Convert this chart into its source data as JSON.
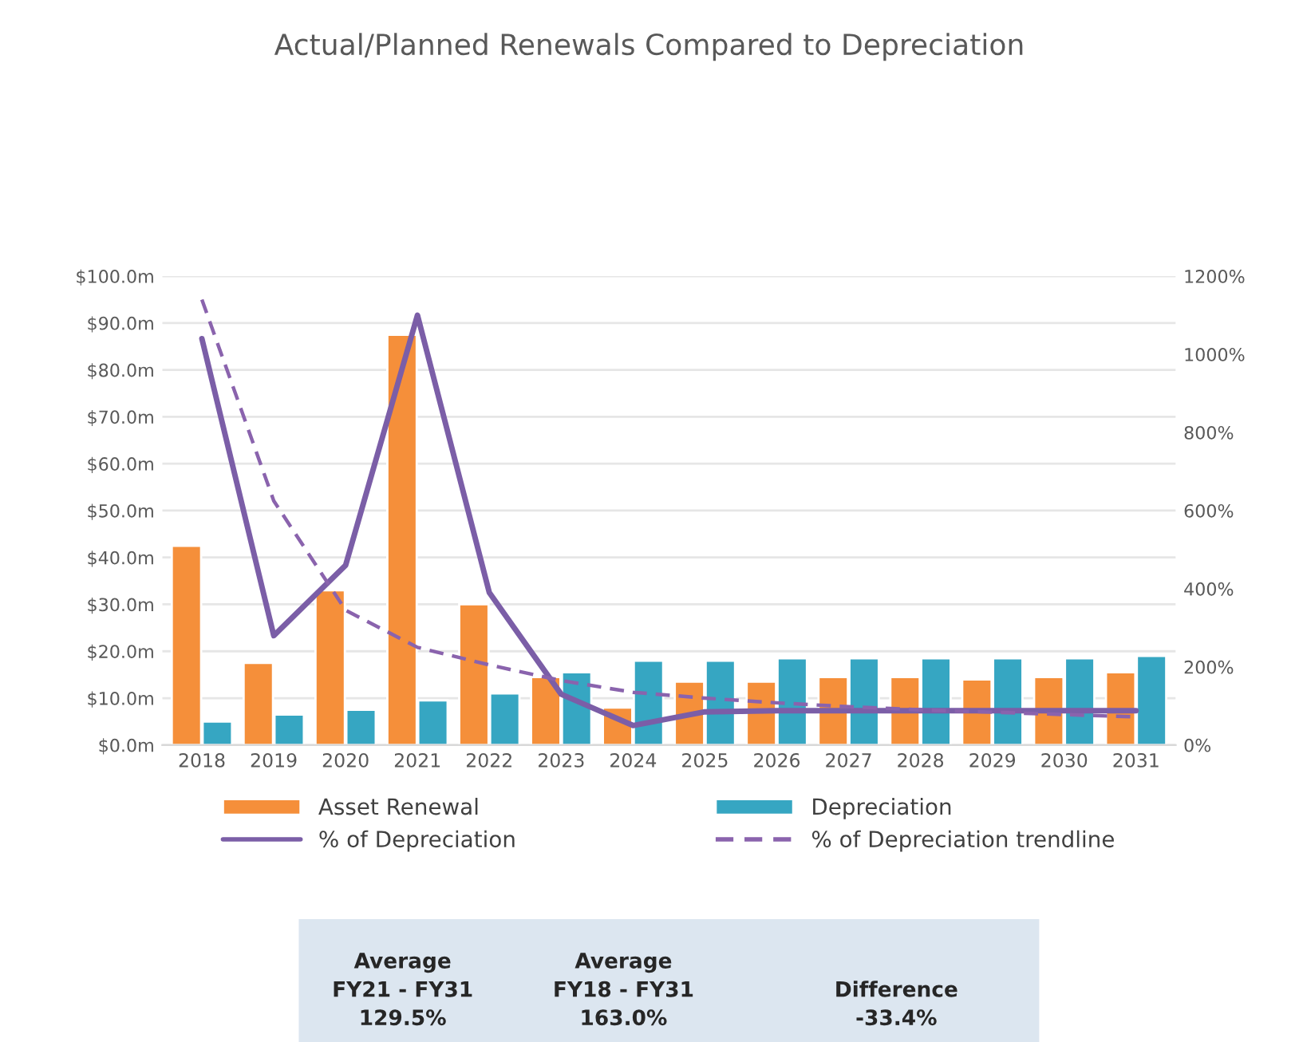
{
  "chart_data": {
    "type": "bar",
    "title": "Actual/Planned Renewals Compared to Depreciation",
    "categories": [
      "2018",
      "2019",
      "2020",
      "2021",
      "2022",
      "2023",
      "2024",
      "2025",
      "2026",
      "2027",
      "2028",
      "2029",
      "2030",
      "2031"
    ],
    "series": [
      {
        "name": "Asset Renewal",
        "color": "#f58f3a",
        "values": [
          42.5,
          17.5,
          33,
          87.5,
          30,
          14.5,
          8,
          13.5,
          13.5,
          14.5,
          14.5,
          14,
          14.5,
          15.5
        ]
      },
      {
        "name": "Depreciation",
        "color": "#36a6c2",
        "values": [
          5,
          6.5,
          7.5,
          9.5,
          11,
          15.5,
          18,
          18,
          18.5,
          18.5,
          18.5,
          18.5,
          18.5,
          19
        ]
      },
      {
        "name": "% of Depreciation",
        "type": "line",
        "axis": "y2",
        "color": "#7b5ea7",
        "line_style": "solid",
        "values": [
          1040,
          280,
          460,
          1100,
          390,
          130,
          50,
          85,
          88,
          88,
          88,
          88,
          88,
          88
        ]
      },
      {
        "name": "% of Depreciation trendline",
        "type": "line",
        "axis": "y2",
        "color": "#8a63ad",
        "line_style": "dashed",
        "values": [
          1140,
          625,
          345,
          250,
          205,
          165,
          135,
          120,
          108,
          98,
          90,
          84,
          78,
          72
        ]
      }
    ],
    "ylim": [
      0,
      100
    ],
    "yticks": [
      {
        "value": 0,
        "label": "$0.0m"
      },
      {
        "value": 10,
        "label": "$10.0m"
      },
      {
        "value": 20,
        "label": "$20.0m"
      },
      {
        "value": 30,
        "label": "$30.0m"
      },
      {
        "value": 40,
        "label": "$40.0m"
      },
      {
        "value": 50,
        "label": "$50.0m"
      },
      {
        "value": 60,
        "label": "$60.0m"
      },
      {
        "value": 70,
        "label": "$70.0m"
      },
      {
        "value": 80,
        "label": "$80.0m"
      },
      {
        "value": 90,
        "label": "$90.0m"
      },
      {
        "value": 100,
        "label": "$100.0m"
      }
    ],
    "y2lim": [
      0,
      1200
    ],
    "y2ticks": [
      {
        "value": 0,
        "label": "0%"
      },
      {
        "value": 200,
        "label": "200%"
      },
      {
        "value": 400,
        "label": "400%"
      },
      {
        "value": 600,
        "label": "600%"
      },
      {
        "value": 800,
        "label": "800%"
      },
      {
        "value": 1000,
        "label": "1000%"
      },
      {
        "value": 1200,
        "label": "1200%"
      }
    ],
    "grid": "y",
    "legend": "bottom",
    "marker": "none",
    "annotations": [
      "Average\nFY21 - FY31\n129.5%",
      "Average\nFY18 - FY31\n163.0%",
      "Difference\n-33.4%"
    ]
  }
}
